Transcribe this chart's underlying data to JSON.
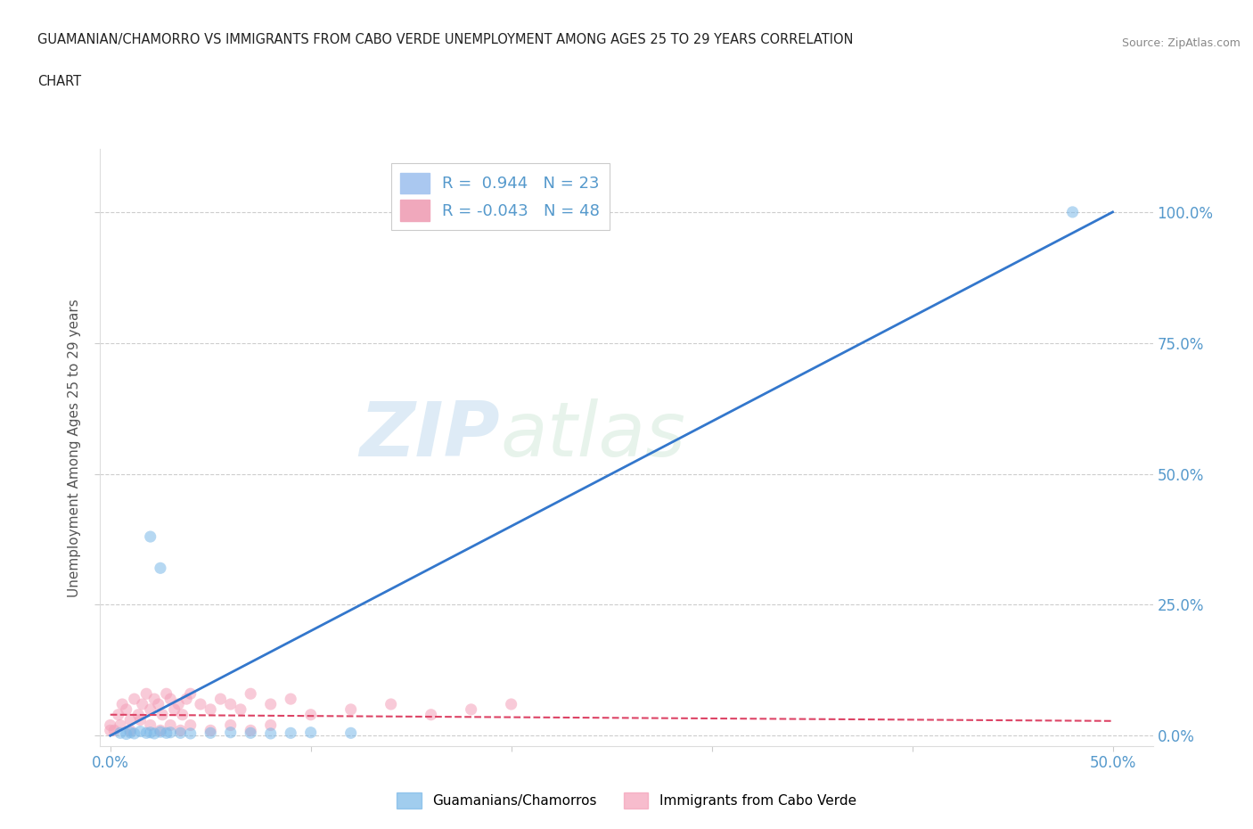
{
  "title_line1": "GUAMANIAN/CHAMORRO VS IMMIGRANTS FROM CABO VERDE UNEMPLOYMENT AMONG AGES 25 TO 29 YEARS CORRELATION",
  "title_line2": "CHART",
  "source": "Source: ZipAtlas.com",
  "ylabel": "Unemployment Among Ages 25 to 29 years",
  "xlim": [
    -0.005,
    0.52
  ],
  "ylim": [
    -0.02,
    1.12
  ],
  "xticks": [
    0.0,
    0.1,
    0.2,
    0.3,
    0.4,
    0.5
  ],
  "xticklabels": [
    "0.0%",
    "",
    "",
    "",
    "",
    "50.0%"
  ],
  "yticks": [
    0.0,
    0.25,
    0.5,
    0.75,
    1.0
  ],
  "yticklabels": [
    "0.0%",
    "25.0%",
    "50.0%",
    "75.0%",
    "100.0%"
  ],
  "watermark_zip": "ZIP",
  "watermark_atlas": "atlas",
  "legend_label1": "R =  0.944   N = 23",
  "legend_label2": "R = -0.043   N = 48",
  "legend_color1": "#aac8f0",
  "legend_color2": "#f0a8bc",
  "bottom_label1": "Guamanians/Chamorros",
  "bottom_label2": "Immigrants from Cabo Verde",
  "blue_scatter_x": [
    0.005,
    0.008,
    0.01,
    0.012,
    0.015,
    0.018,
    0.02,
    0.022,
    0.025,
    0.028,
    0.03,
    0.035,
    0.04,
    0.05,
    0.06,
    0.07,
    0.08,
    0.09,
    0.1,
    0.12,
    0.02,
    0.025,
    0.48
  ],
  "blue_scatter_y": [
    0.005,
    0.003,
    0.006,
    0.004,
    0.008,
    0.005,
    0.006,
    0.004,
    0.007,
    0.005,
    0.006,
    0.005,
    0.004,
    0.005,
    0.006,
    0.005,
    0.004,
    0.005,
    0.006,
    0.005,
    0.38,
    0.32,
    1.0
  ],
  "pink_scatter_x": [
    0.0,
    0.002,
    0.004,
    0.006,
    0.008,
    0.01,
    0.012,
    0.014,
    0.016,
    0.018,
    0.02,
    0.022,
    0.024,
    0.026,
    0.028,
    0.03,
    0.032,
    0.034,
    0.036,
    0.038,
    0.04,
    0.045,
    0.05,
    0.055,
    0.06,
    0.065,
    0.07,
    0.08,
    0.09,
    0.1,
    0.12,
    0.14,
    0.16,
    0.18,
    0.2,
    0.0,
    0.005,
    0.01,
    0.015,
    0.02,
    0.025,
    0.03,
    0.035,
    0.04,
    0.05,
    0.06,
    0.07,
    0.08
  ],
  "pink_scatter_y": [
    0.02,
    0.01,
    0.04,
    0.06,
    0.05,
    0.03,
    0.07,
    0.04,
    0.06,
    0.08,
    0.05,
    0.07,
    0.06,
    0.04,
    0.08,
    0.07,
    0.05,
    0.06,
    0.04,
    0.07,
    0.08,
    0.06,
    0.05,
    0.07,
    0.06,
    0.05,
    0.08,
    0.06,
    0.07,
    0.04,
    0.05,
    0.06,
    0.04,
    0.05,
    0.06,
    0.01,
    0.02,
    0.01,
    0.03,
    0.02,
    0.01,
    0.02,
    0.01,
    0.02,
    0.01,
    0.02,
    0.01,
    0.02
  ],
  "blue_line_x": [
    0.0,
    0.5
  ],
  "blue_line_y": [
    0.0,
    1.0
  ],
  "pink_line_x": [
    0.0,
    0.5
  ],
  "pink_line_y": [
    0.04,
    0.028
  ],
  "blue_color": "#7ab8e8",
  "pink_color": "#f4a0b8",
  "blue_line_color": "#3377cc",
  "pink_line_color": "#dd4466",
  "bg_color": "#ffffff",
  "grid_color": "#c8c8c8",
  "scatter_alpha": 0.55,
  "scatter_size": 90,
  "tick_color": "#5599cc"
}
